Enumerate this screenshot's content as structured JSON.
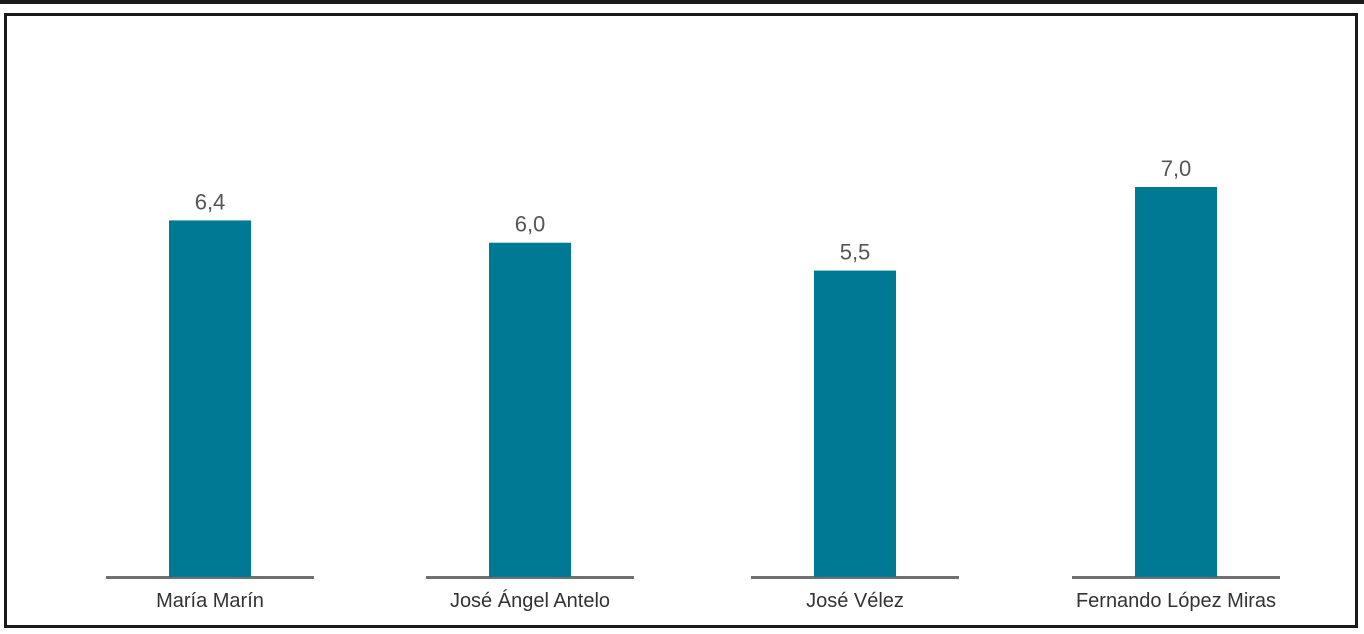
{
  "chart_data": {
    "type": "bar",
    "categories": [
      "María Marín",
      "José Ángel Antelo",
      "José Vélez",
      "Fernando López Miras"
    ],
    "values": [
      6.4,
      6.0,
      5.5,
      7.0
    ],
    "value_labels": [
      "6,4",
      "6,0",
      "5,5",
      "7,0"
    ],
    "title": "",
    "xlabel": "",
    "ylabel": "",
    "ylim": [
      0,
      7.0
    ],
    "grid": false,
    "colors": {
      "bar": "#007994",
      "baseline": "#707070",
      "frame": "#1a1a1a"
    }
  }
}
